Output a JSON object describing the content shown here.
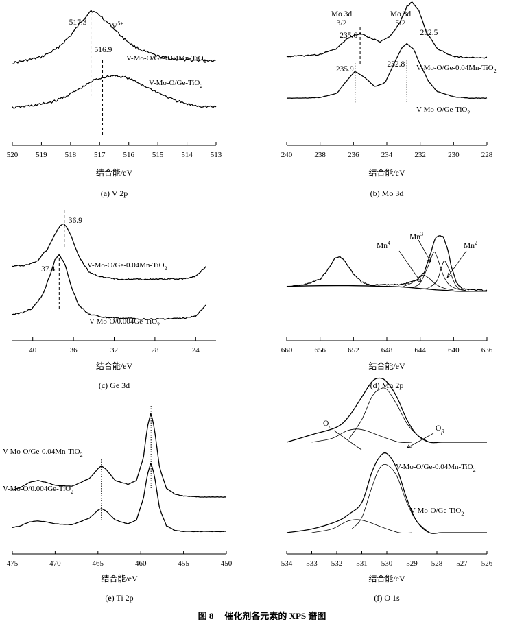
{
  "figure_caption": {
    "prefix": "图 8",
    "title": "催化剂各元素的 XPS 谱图"
  },
  "chart_data": [
    {
      "id": "a",
      "type": "line",
      "caption": "(a) V 2p",
      "xlabel": "结合能/eV",
      "xlim": [
        520,
        513
      ],
      "xticks": [
        520,
        519,
        518,
        517,
        516,
        515,
        514,
        513
      ],
      "series": [
        {
          "name": "V-Mo-O/Ge-0.04Mn-TiO2",
          "label_main": "V-Mo-O/Ge-0.04Mn-TiO",
          "label_sub": "2",
          "x": [
            520,
            519.5,
            519,
            518.5,
            518,
            517.6,
            517.3,
            517,
            516.6,
            516.2,
            515.8,
            515.4,
            515,
            514.5,
            514,
            513.5,
            513
          ],
          "y": [
            0.18,
            0.22,
            0.27,
            0.38,
            0.58,
            0.8,
            0.95,
            0.88,
            0.72,
            0.55,
            0.42,
            0.34,
            0.28,
            0.24,
            0.22,
            0.22,
            0.22
          ]
        },
        {
          "name": "V-Mo-O/Ge-TiO2",
          "label_main": "V-Mo-O/Ge-TiO",
          "label_sub": "2",
          "x": [
            520,
            519.5,
            519,
            518.5,
            518,
            517.5,
            517.2,
            516.9,
            516.5,
            516.1,
            515.7,
            515.3,
            514.9,
            514.5,
            514,
            513.5,
            513
          ],
          "y": [
            0.08,
            0.1,
            0.13,
            0.18,
            0.28,
            0.4,
            0.48,
            0.52,
            0.55,
            0.52,
            0.45,
            0.36,
            0.28,
            0.2,
            0.13,
            0.1,
            0.09
          ]
        }
      ],
      "annotations": [
        {
          "text": "517.3",
          "x": 517.3
        },
        {
          "text": "516.9",
          "x": 516.9
        },
        {
          "text": "V",
          "sup": "5+"
        }
      ]
    },
    {
      "id": "b",
      "type": "line",
      "caption": "(b) Mo 3d",
      "xlabel": "结合能/eV",
      "xlim": [
        240,
        228
      ],
      "xticks": [
        240,
        238,
        236,
        234,
        232,
        230,
        228
      ],
      "series": [
        {
          "name": "V-Mo-O/Ge-0.04Mn-TiO2",
          "label_main": "V-Mo-O/Ge-0.04Mn-TiO",
          "label_sub": "2",
          "x": [
            240,
            239,
            238,
            237,
            236.3,
            235.6,
            235,
            234.4,
            233.8,
            233.2,
            232.8,
            232.5,
            232.1,
            231.6,
            231,
            230,
            229,
            228
          ],
          "y": [
            0.1,
            0.11,
            0.13,
            0.22,
            0.38,
            0.45,
            0.38,
            0.32,
            0.4,
            0.62,
            0.85,
            0.92,
            0.8,
            0.45,
            0.22,
            0.1,
            0.08,
            0.08
          ]
        },
        {
          "name": "V-Mo-O/Ge-TiO2",
          "label_main": "V-Mo-O/Ge-TiO",
          "label_sub": "2",
          "x": [
            240,
            239,
            238,
            237,
            236.5,
            235.9,
            235.3,
            234.7,
            234.1,
            233.5,
            233.1,
            232.8,
            232.4,
            232,
            231.5,
            231,
            230,
            229,
            228
          ],
          "y": [
            0.05,
            0.05,
            0.06,
            0.12,
            0.28,
            0.45,
            0.35,
            0.22,
            0.28,
            0.6,
            0.8,
            0.86,
            0.78,
            0.55,
            0.3,
            0.15,
            0.07,
            0.05,
            0.05
          ]
        }
      ],
      "annotations": [
        {
          "text": "Mo 3d",
          "line2": "3/2"
        },
        {
          "text": "Mo 3d",
          "line2": "5/2"
        },
        {
          "text": "235.6",
          "x": 235.6
        },
        {
          "text": "232.5",
          "x": 232.5
        },
        {
          "text": "235.9",
          "x": 235.9
        },
        {
          "text": "232.8",
          "x": 232.8
        }
      ]
    },
    {
      "id": "c",
      "type": "line",
      "caption": "(c) Ge 3d",
      "xlabel": "结合能/eV",
      "xlim": [
        42,
        22
      ],
      "xticks": [
        40,
        36,
        32,
        28,
        24
      ],
      "series": [
        {
          "name": "V-Mo-O/Ge-0.04Mn-TiO2",
          "label_main": "V-Mo-O/Ge-0.04Mn-TiO",
          "label_sub": "2",
          "x": [
            42,
            40.5,
            39.5,
            38.5,
            38,
            37.4,
            36.9,
            36.3,
            35.5,
            34.5,
            33,
            31,
            29,
            27,
            25,
            24,
            23
          ],
          "y": [
            0.3,
            0.32,
            0.38,
            0.55,
            0.7,
            0.85,
            0.9,
            0.75,
            0.45,
            0.22,
            0.14,
            0.12,
            0.12,
            0.12,
            0.13,
            0.16,
            0.3
          ]
        },
        {
          "name": "V-Mo-O/0.004Ge-TiO2",
          "label_main": "V-Mo-O/0.004Ge-TiO",
          "label_sub": "2",
          "x": [
            42,
            41,
            40,
            39,
            38.3,
            37.8,
            37.4,
            36.8,
            36.2,
            35.5,
            34.5,
            33,
            31,
            29,
            27,
            25,
            24,
            23
          ],
          "y": [
            0.1,
            0.12,
            0.18,
            0.35,
            0.6,
            0.8,
            0.86,
            0.72,
            0.45,
            0.22,
            0.1,
            0.06,
            0.05,
            0.04,
            0.04,
            0.05,
            0.08,
            0.22
          ]
        }
      ],
      "annotations": [
        {
          "text": "36.9",
          "x": 36.9
        },
        {
          "text": "37.4",
          "x": 37.4
        }
      ]
    },
    {
      "id": "d",
      "type": "line",
      "caption": "(d) Mn 2p",
      "xlabel": "结合能/eV",
      "xlim": [
        660,
        636
      ],
      "xticks": [
        660,
        656,
        652,
        648,
        644,
        640,
        636
      ],
      "series": [
        {
          "name": "envelope",
          "x": [
            660,
            658,
            656,
            655,
            654.2,
            653.6,
            653,
            652,
            651,
            650,
            648,
            646,
            644.5,
            643.5,
            642.8,
            642.2,
            641.7,
            641.2,
            640.7,
            640.2,
            639.6,
            639,
            638,
            637,
            636
          ],
          "y": [
            0.1,
            0.12,
            0.2,
            0.35,
            0.5,
            0.52,
            0.45,
            0.28,
            0.16,
            0.12,
            0.12,
            0.13,
            0.18,
            0.3,
            0.55,
            0.78,
            0.82,
            0.8,
            0.62,
            0.35,
            0.14,
            0.07,
            0.05,
            0.05,
            0.04
          ]
        },
        {
          "name": "background",
          "x": [
            660,
            656,
            652,
            648,
            646,
            644,
            642,
            640.5,
            639.5,
            638,
            636
          ],
          "y": [
            0.1,
            0.11,
            0.11,
            0.1,
            0.09,
            0.07,
            0.05,
            0.04,
            0.03,
            0.03,
            0.03
          ]
        },
        {
          "name": "Mn4+",
          "x": [
            646,
            645,
            644,
            643.6,
            643,
            642,
            641,
            640
          ],
          "y": [
            0.1,
            0.15,
            0.23,
            0.26,
            0.22,
            0.12,
            0.07,
            0.05
          ]
        },
        {
          "name": "Mn3+",
          "x": [
            645,
            644,
            643,
            642.4,
            642,
            641.2,
            640.5,
            639.5,
            638.5
          ],
          "y": [
            0.08,
            0.15,
            0.4,
            0.58,
            0.52,
            0.25,
            0.12,
            0.06,
            0.04
          ]
        },
        {
          "name": "Mn2+",
          "x": [
            644,
            643,
            642,
            641.5,
            641.1,
            640.6,
            640,
            639.5,
            638.5
          ],
          "y": [
            0.06,
            0.08,
            0.18,
            0.35,
            0.46,
            0.36,
            0.18,
            0.08,
            0.04
          ]
        }
      ],
      "annotations": [
        {
          "text": "Mn",
          "sup": "4+"
        },
        {
          "text": "Mn",
          "sup": "3+"
        },
        {
          "text": "Mn",
          "sup": "2+"
        }
      ]
    },
    {
      "id": "e",
      "type": "line",
      "caption": "(e) Ti 2p",
      "xlabel": "结合能/eV",
      "xlim": [
        475,
        450
      ],
      "xticks": [
        475,
        470,
        465,
        460,
        455,
        450
      ],
      "series": [
        {
          "name": "V-Mo-O/Ge-0.04Mn-TiO2",
          "label_main": "V-Mo-O/Ge-0.04Mn-TiO",
          "label_sub": "2",
          "x": [
            475,
            474,
            473,
            472,
            471,
            470,
            468,
            466,
            465,
            464.6,
            464,
            463,
            461.5,
            460.5,
            459.7,
            459.2,
            458.8,
            458.4,
            457.8,
            457,
            456,
            455,
            453,
            451,
            450
          ],
          "y": [
            0.12,
            0.15,
            0.2,
            0.22,
            0.2,
            0.17,
            0.16,
            0.24,
            0.34,
            0.37,
            0.33,
            0.22,
            0.18,
            0.22,
            0.45,
            0.78,
            0.92,
            0.75,
            0.35,
            0.14,
            0.08,
            0.06,
            0.05,
            0.05,
            0.05
          ]
        },
        {
          "name": "V-Mo-O/0.004Ge-TiO2",
          "label_main": "V-Mo-O/0.004Ge-TiO",
          "label_sub": "2",
          "x": [
            475,
            474,
            473,
            472,
            471,
            470,
            468,
            466,
            465,
            464.6,
            464,
            463,
            461.5,
            460.5,
            459.7,
            459.2,
            458.8,
            458.4,
            457.8,
            457,
            456,
            455,
            453,
            451,
            450
          ],
          "y": [
            0.06,
            0.08,
            0.12,
            0.13,
            0.12,
            0.1,
            0.09,
            0.16,
            0.24,
            0.26,
            0.23,
            0.14,
            0.1,
            0.14,
            0.36,
            0.62,
            0.74,
            0.6,
            0.26,
            0.08,
            0.03,
            0.02,
            0.02,
            0.02,
            0.02
          ]
        }
      ],
      "annotations": []
    },
    {
      "id": "f",
      "type": "line",
      "caption": "(f) O 1s",
      "xlabel": "结合能/eV",
      "xlim": [
        534,
        526
      ],
      "xticks": [
        534,
        533,
        532,
        531,
        530,
        529,
        528,
        527,
        526
      ],
      "series": [
        {
          "name": "V-Mo-O/Ge-0.04Mn-TiO2 envelope",
          "label_main": "V-Mo-O/Ge-0.04Mn-TiO",
          "label_sub": "2",
          "x": [
            534,
            533,
            532,
            531.5,
            531,
            530.6,
            530.3,
            530,
            529.6,
            529.2,
            528.8,
            528.3,
            527.8,
            527,
            526
          ],
          "y": [
            0.7,
            0.72,
            0.74,
            0.77,
            0.82,
            0.86,
            0.87,
            0.86,
            0.82,
            0.76,
            0.72,
            0.7,
            0.7,
            0.7,
            0.7
          ]
        },
        {
          "name": "V-Mo-O/Ge-0.04Mn-TiO2 O_beta",
          "x": [
            531.5,
            531,
            530.6,
            530.3,
            530,
            529.6,
            529.2,
            528.8,
            528.3
          ],
          "y": [
            0.71,
            0.76,
            0.82,
            0.84,
            0.84,
            0.8,
            0.75,
            0.72,
            0.7
          ]
        },
        {
          "name": "V-Mo-O/Ge-0.04Mn-TiO2 O_alpha",
          "x": [
            533,
            532.2,
            531.6,
            531.2,
            530.8,
            530.2,
            529.5,
            529
          ],
          "y": [
            0.7,
            0.71,
            0.73,
            0.735,
            0.73,
            0.715,
            0.7,
            0.7
          ]
        },
        {
          "name": "V-Mo-O/Ge-TiO2 envelope",
          "label_main": "V-Mo-O/Ge-TiO",
          "label_sub": "2",
          "x": [
            534,
            533,
            532,
            531.5,
            531,
            530.6,
            530.3,
            530,
            529.6,
            529.2,
            528.8,
            528.3,
            527.8,
            527,
            526
          ],
          "y": [
            0.46,
            0.47,
            0.49,
            0.51,
            0.54,
            0.62,
            0.66,
            0.67,
            0.63,
            0.55,
            0.49,
            0.46,
            0.46,
            0.46,
            0.46
          ]
        },
        {
          "name": "V-Mo-O/Ge-TiO2 O_beta",
          "x": [
            531.4,
            531,
            530.6,
            530.3,
            530,
            529.6,
            529.2,
            528.8,
            528.3
          ],
          "y": [
            0.47,
            0.5,
            0.58,
            0.63,
            0.64,
            0.61,
            0.54,
            0.49,
            0.46
          ]
        },
        {
          "name": "V-Mo-O/Ge-TiO2 O_alpha",
          "x": [
            533,
            532.2,
            531.6,
            531.2,
            530.8,
            530.2,
            529.5,
            529
          ],
          "y": [
            0.46,
            0.47,
            0.49,
            0.495,
            0.49,
            0.475,
            0.46,
            0.46
          ]
        }
      ],
      "annotations": [
        {
          "text": "O",
          "sub": "α"
        },
        {
          "text": "O",
          "sub": "β"
        }
      ]
    }
  ]
}
